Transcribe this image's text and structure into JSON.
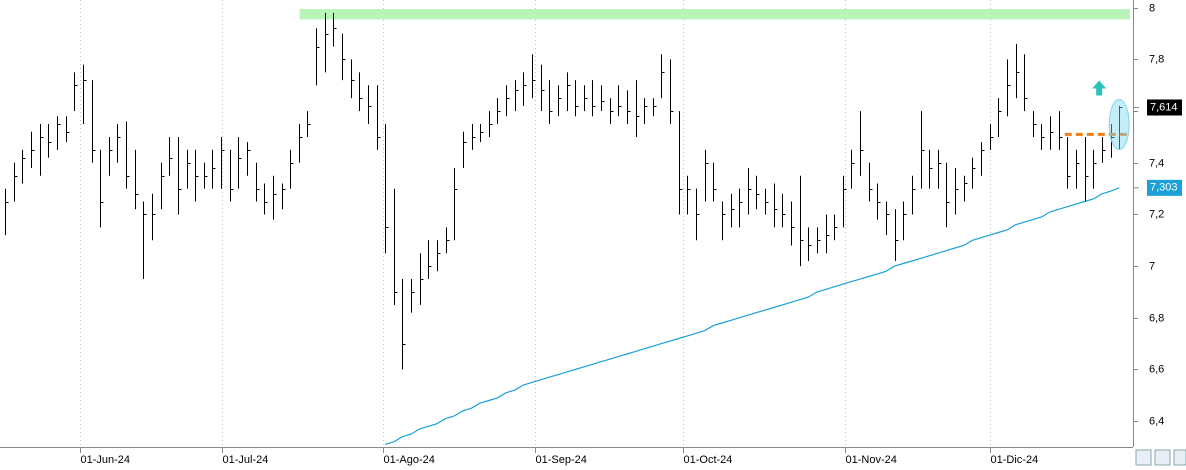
{
  "chart_data": {
    "type": "ohlc",
    "xlim": [
      -0.6,
      130.6
    ],
    "xticks": [
      {
        "value": 8.7,
        "label": "01-Jun-24"
      },
      {
        "value": 25.1,
        "label": "01-Jul-24"
      },
      {
        "value": 43.8,
        "label": "01-Ago-24"
      },
      {
        "value": 61.3,
        "label": "01-Sep-24"
      },
      {
        "value": 78.5,
        "label": "01-Oct-24"
      },
      {
        "value": 97.2,
        "label": "01-Nov-24"
      },
      {
        "value": 114,
        "label": "01-Dic-24"
      }
    ],
    "ylim": [
      6.3,
      8.03
    ],
    "yticks": [
      {
        "value": 6.4,
        "label": "6,4"
      },
      {
        "value": 6.6,
        "label": "6,6"
      },
      {
        "value": 6.8,
        "label": "6,8"
      },
      7,
      {
        "value": 7.2,
        "label": "7,2"
      },
      {
        "value": 7.4,
        "label": "7,4"
      },
      {
        "value": 7.6,
        "label": "7,6"
      },
      {
        "value": 7.8,
        "label": "7,8"
      },
      8
    ],
    "grid": true,
    "color": "#000000",
    "high": [
      7.3,
      7.4,
      7.45,
      7.52,
      7.55,
      7.55,
      7.58,
      7.58,
      7.75,
      7.78,
      7.72,
      7.45,
      7.5,
      7.55,
      7.56,
      7.45,
      7.25,
      7.28,
      7.4,
      7.5,
      7.5,
      7.45,
      7.45,
      7.4,
      7.45,
      7.5,
      7.45,
      7.5,
      7.48,
      7.4,
      7.32,
      7.35,
      7.32,
      7.45,
      7.55,
      7.6,
      7.92,
      7.98,
      7.98,
      7.9,
      7.8,
      7.75,
      7.7,
      7.7,
      7.55,
      7.3,
      6.95,
      6.95,
      7.05,
      7.1,
      7.1,
      7.15,
      7.38,
      7.52,
      7.55,
      7.55,
      7.6,
      7.65,
      7.7,
      7.72,
      7.75,
      7.82,
      7.78,
      7.72,
      7.7,
      7.75,
      7.72,
      7.7,
      7.72,
      7.7,
      7.65,
      7.7,
      7.68,
      7.72,
      7.65,
      7.65,
      7.82,
      7.8,
      7.6,
      7.35,
      7.3,
      7.45,
      7.4,
      7.25,
      7.28,
      7.3,
      7.38,
      7.35,
      7.3,
      7.32,
      7.28,
      7.25,
      7.35,
      7.15,
      7.15,
      7.2,
      7.2,
      7.35,
      7.45,
      7.6,
      7.4,
      7.32,
      7.25,
      7.22,
      7.25,
      7.35,
      7.6,
      7.45,
      7.45,
      7.4,
      7.38,
      7.35,
      7.42,
      7.48,
      7.55,
      7.65,
      7.8,
      7.86,
      7.82,
      7.6,
      7.55,
      7.58,
      7.6,
      7.5,
      7.45,
      7.5,
      7.45,
      7.5,
      7.55,
      7.62
    ],
    "low": [
      7.12,
      7.25,
      7.32,
      7.38,
      7.35,
      7.42,
      7.45,
      7.48,
      7.6,
      7.55,
      7.4,
      7.15,
      7.35,
      7.4,
      7.3,
      7.22,
      6.95,
      7.1,
      7.22,
      7.35,
      7.2,
      7.3,
      7.25,
      7.3,
      7.3,
      7.3,
      7.25,
      7.3,
      7.35,
      7.25,
      7.2,
      7.18,
      7.22,
      7.3,
      7.4,
      7.5,
      7.7,
      7.75,
      7.85,
      7.72,
      7.65,
      7.6,
      7.55,
      7.45,
      7.05,
      6.85,
      6.6,
      6.82,
      6.85,
      6.95,
      6.98,
      7.05,
      7.1,
      7.38,
      7.45,
      7.48,
      7.5,
      7.55,
      7.58,
      7.6,
      7.62,
      7.65,
      7.6,
      7.55,
      7.58,
      7.6,
      7.58,
      7.6,
      7.58,
      7.6,
      7.55,
      7.58,
      7.55,
      7.5,
      7.55,
      7.58,
      7.65,
      7.55,
      7.2,
      7.2,
      7.1,
      7.25,
      7.25,
      7.1,
      7.15,
      7.15,
      7.2,
      7.22,
      7.2,
      7.15,
      7.15,
      7.08,
      7.0,
      7.02,
      7.05,
      7.05,
      7.1,
      7.15,
      7.3,
      7.35,
      7.25,
      7.18,
      7.12,
      7.02,
      7.1,
      7.2,
      7.3,
      7.3,
      7.3,
      7.15,
      7.2,
      7.25,
      7.3,
      7.35,
      7.45,
      7.5,
      7.58,
      7.65,
      7.6,
      7.5,
      7.45,
      7.45,
      7.45,
      7.3,
      7.3,
      7.25,
      7.3,
      7.4,
      7.42,
      7.45
    ],
    "close": [
      7.25,
      7.35,
      7.42,
      7.45,
      7.5,
      7.48,
      7.55,
      7.52,
      7.7,
      7.72,
      7.45,
      7.25,
      7.45,
      7.5,
      7.35,
      7.28,
      7.2,
      7.2,
      7.35,
      7.42,
      7.3,
      7.4,
      7.35,
      7.35,
      7.38,
      7.45,
      7.3,
      7.42,
      7.45,
      7.3,
      7.25,
      7.28,
      7.3,
      7.4,
      7.5,
      7.55,
      7.85,
      7.9,
      7.92,
      7.8,
      7.72,
      7.65,
      7.62,
      7.5,
      7.15,
      6.9,
      6.7,
      6.9,
      6.95,
      7.0,
      7.05,
      7.1,
      7.3,
      7.48,
      7.5,
      7.52,
      7.55,
      7.6,
      7.65,
      7.68,
      7.7,
      7.72,
      7.68,
      7.6,
      7.65,
      7.7,
      7.62,
      7.65,
      7.62,
      7.64,
      7.6,
      7.62,
      7.6,
      7.58,
      7.62,
      7.62,
      7.75,
      7.6,
      7.3,
      7.3,
      7.2,
      7.4,
      7.3,
      7.2,
      7.22,
      7.25,
      7.3,
      7.28,
      7.25,
      7.22,
      7.2,
      7.15,
      7.1,
      7.08,
      7.1,
      7.12,
      7.15,
      7.3,
      7.4,
      7.45,
      7.3,
      7.25,
      7.2,
      7.1,
      7.2,
      7.3,
      7.45,
      7.38,
      7.4,
      7.25,
      7.3,
      7.32,
      7.38,
      7.45,
      7.5,
      7.6,
      7.7,
      7.75,
      7.65,
      7.55,
      7.5,
      7.52,
      7.5,
      7.35,
      7.4,
      7.35,
      7.4,
      7.45,
      7.5,
      7.614
    ],
    "ma": {
      "color": "#1ba1d8",
      "values": [
        null,
        null,
        null,
        null,
        null,
        null,
        null,
        null,
        null,
        null,
        null,
        null,
        null,
        null,
        null,
        null,
        null,
        null,
        null,
        null,
        null,
        null,
        null,
        null,
        null,
        null,
        null,
        null,
        null,
        null,
        null,
        null,
        null,
        null,
        null,
        null,
        null,
        null,
        null,
        null,
        null,
        null,
        null,
        null,
        6.31,
        6.32,
        6.34,
        6.35,
        6.37,
        6.38,
        6.39,
        6.41,
        6.42,
        6.44,
        6.45,
        6.47,
        6.48,
        6.49,
        6.51,
        6.52,
        6.54,
        6.55,
        6.56,
        6.57,
        6.58,
        6.59,
        6.6,
        6.61,
        6.62,
        6.63,
        6.64,
        6.65,
        6.66,
        6.67,
        6.68,
        6.69,
        6.7,
        6.71,
        6.72,
        6.73,
        6.74,
        6.75,
        6.77,
        6.78,
        6.79,
        6.8,
        6.81,
        6.82,
        6.83,
        6.84,
        6.85,
        6.86,
        6.87,
        6.88,
        6.9,
        6.91,
        6.92,
        6.93,
        6.94,
        6.95,
        6.96,
        6.97,
        6.98,
        7.0,
        7.01,
        7.02,
        7.03,
        7.04,
        7.05,
        7.06,
        7.07,
        7.08,
        7.1,
        7.11,
        7.12,
        7.13,
        7.14,
        7.16,
        7.17,
        7.18,
        7.19,
        7.21,
        7.22,
        7.23,
        7.24,
        7.25,
        7.26,
        7.28,
        7.29,
        7.303
      ]
    },
    "last_price": {
      "value": 7.614,
      "label": "7,614"
    },
    "ma_price": {
      "value": 7.303,
      "label": "7,303"
    },
    "resistance_zone": {
      "low": 7.955,
      "high": 7.995,
      "x_start": 34.1,
      "color": "#b8f5b8"
    },
    "breakout_level": {
      "value": 7.51,
      "x_start": 122.7,
      "color": "#f07d1a"
    }
  }
}
